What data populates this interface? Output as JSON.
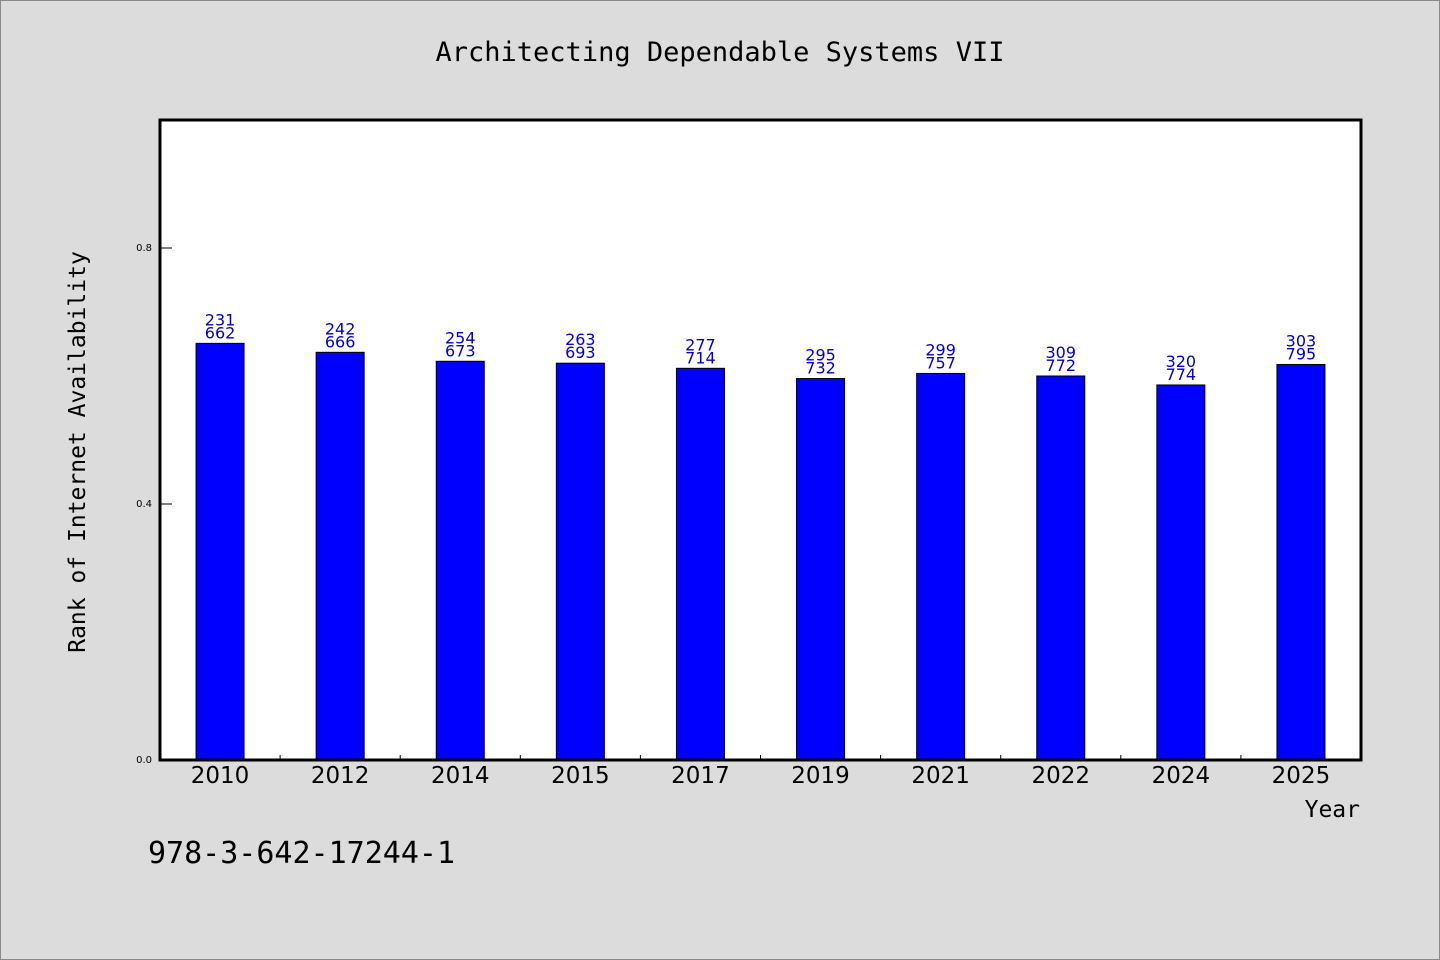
{
  "chart_data": {
    "type": "bar",
    "title": "Architecting Dependable Systems VII",
    "xlabel": "Year",
    "ylabel": "Rank of Internet Availability",
    "categories": [
      "2010",
      "2012",
      "2014",
      "2015",
      "2017",
      "2019",
      "2021",
      "2022",
      "2024",
      "2025"
    ],
    "values": [
      0.651,
      0.637,
      0.623,
      0.62,
      0.612,
      0.596,
      0.604,
      0.6,
      0.586,
      0.618
    ],
    "data_labels": [
      [
        "231",
        "662"
      ],
      [
        "242",
        "666"
      ],
      [
        "254",
        "673"
      ],
      [
        "263",
        "693"
      ],
      [
        "277",
        "714"
      ],
      [
        "295",
        "732"
      ],
      [
        "299",
        "757"
      ],
      [
        "309",
        "772"
      ],
      [
        "320",
        "774"
      ],
      [
        "303",
        "795"
      ]
    ],
    "ylim": [
      0,
      1.0
    ],
    "yticks": [
      "0.0",
      "0.4",
      "0.8"
    ],
    "ytick_values": [
      0.0,
      0.4,
      0.8
    ],
    "grid": false,
    "bar_color": "#0000ff",
    "label_color": "#0000cc",
    "footer_text": "978-3-642-17244-1"
  }
}
